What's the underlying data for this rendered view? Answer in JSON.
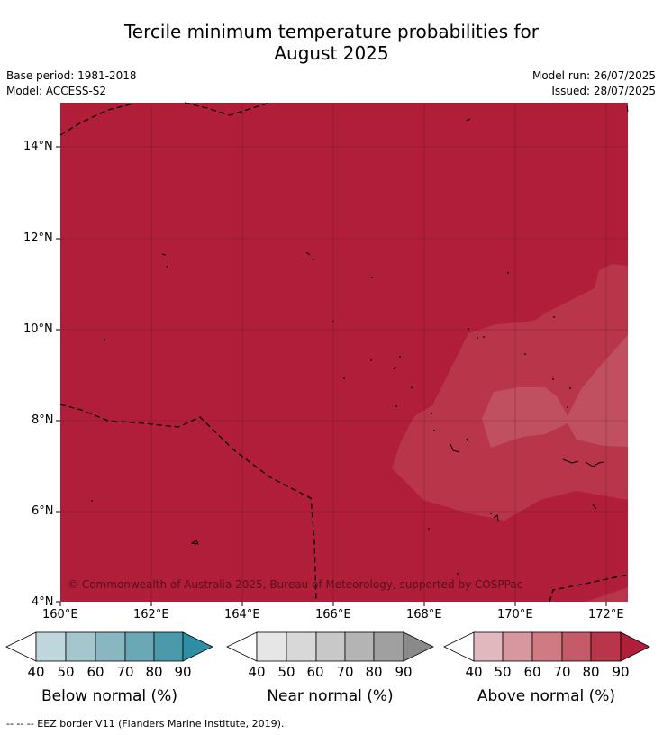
{
  "title_line1": "Tercile minimum temperature probabilities for",
  "title_line2": "August 2025",
  "base_period": "Base period: 1981-2018",
  "model": "Model: ACCESS-S2",
  "model_run": "Model run: 26/07/2025",
  "issued": "Issued: 28/07/2025",
  "copyright": "© Commonwealth of Australia 2025, Bureau of Meteorology, supported by COSPPac",
  "axes": {
    "lat_ticks": [
      "14°N",
      "12°N",
      "10°N",
      "8°N",
      "6°N",
      "4°N"
    ],
    "lon_ticks": [
      "160°E",
      "162°E",
      "164°E",
      "166°E",
      "168°E",
      "170°E",
      "172°E"
    ],
    "lat_range": [
      4,
      15
    ],
    "lon_range": [
      160,
      172.5
    ]
  },
  "colorbars": [
    {
      "title": "Below normal (%)",
      "labels": [
        "40",
        "50",
        "60",
        "70",
        "80",
        "90"
      ],
      "colors": [
        "#ffffff",
        "#bfd6dc",
        "#a4c6cd",
        "#88b6c1",
        "#6aa8b6",
        "#4a9aab",
        "#2e8ea3"
      ]
    },
    {
      "title": "Near normal (%)",
      "labels": [
        "40",
        "50",
        "60",
        "70",
        "80",
        "90"
      ],
      "colors": [
        "#ffffff",
        "#e6e6e6",
        "#d8d8d8",
        "#c8c8c8",
        "#b4b4b4",
        "#a0a0a0",
        "#8a8a8a"
      ]
    },
    {
      "title": "Above normal (%)",
      "labels": [
        "40",
        "50",
        "60",
        "70",
        "80",
        "90"
      ],
      "colors": [
        "#ffffff",
        "#e2b8bf",
        "#d7979f",
        "#d07a84",
        "#c55a68",
        "#b8354a",
        "#b01e3a"
      ]
    }
  ],
  "map_colors": {
    "level_90": "#b01e3a",
    "level_80": "#b8354a",
    "level_70": "#c05060"
  },
  "footnote": "-- -- -- EEZ border V11 (Flanders Marine Institute, 2019)."
}
